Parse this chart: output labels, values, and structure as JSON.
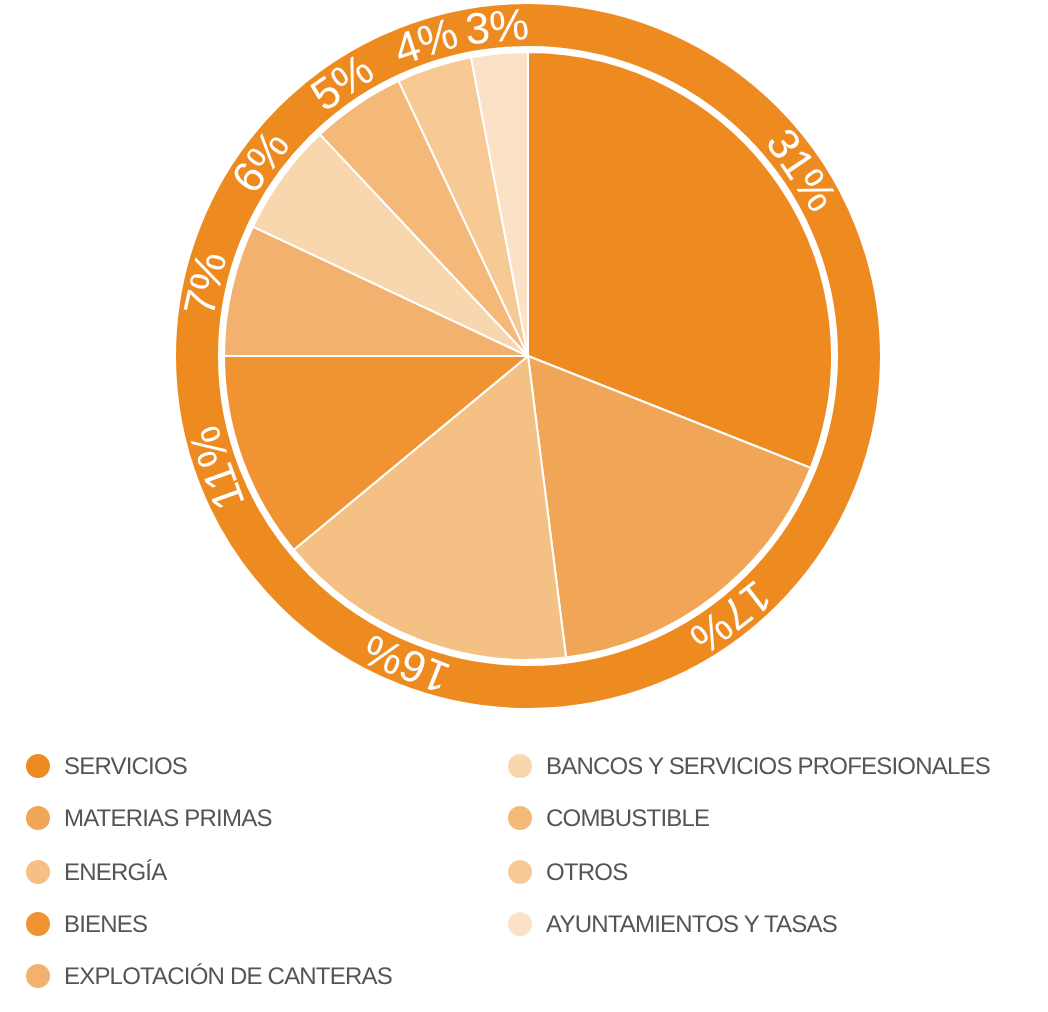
{
  "chart_data": {
    "type": "pie",
    "categories": [
      "SERVICIOS",
      "MATERIAS PRIMAS",
      "ENERGÍA",
      "BIENES",
      "EXPLOTACIÓN DE CANTERAS",
      "BANCOS Y SERVICIOS PROFESIONALES",
      "COMBUSTIBLE",
      "OTROS",
      "AYUNTAMIENTOS Y TASAS"
    ],
    "values": [
      31,
      17,
      16,
      11,
      7,
      6,
      5,
      4,
      3
    ],
    "value_labels": [
      "31%",
      "17%",
      "16%",
      "11%",
      "7%",
      "6%",
      "5%",
      "4%",
      "3%"
    ],
    "colors": [
      "#ee8b20",
      "#f0a656",
      "#f5c084",
      "#ef9333",
      "#f3b170",
      "#f8d6ae",
      "#f4b878",
      "#f7c994",
      "#fbe2c6"
    ],
    "legend": "bottom"
  }
}
